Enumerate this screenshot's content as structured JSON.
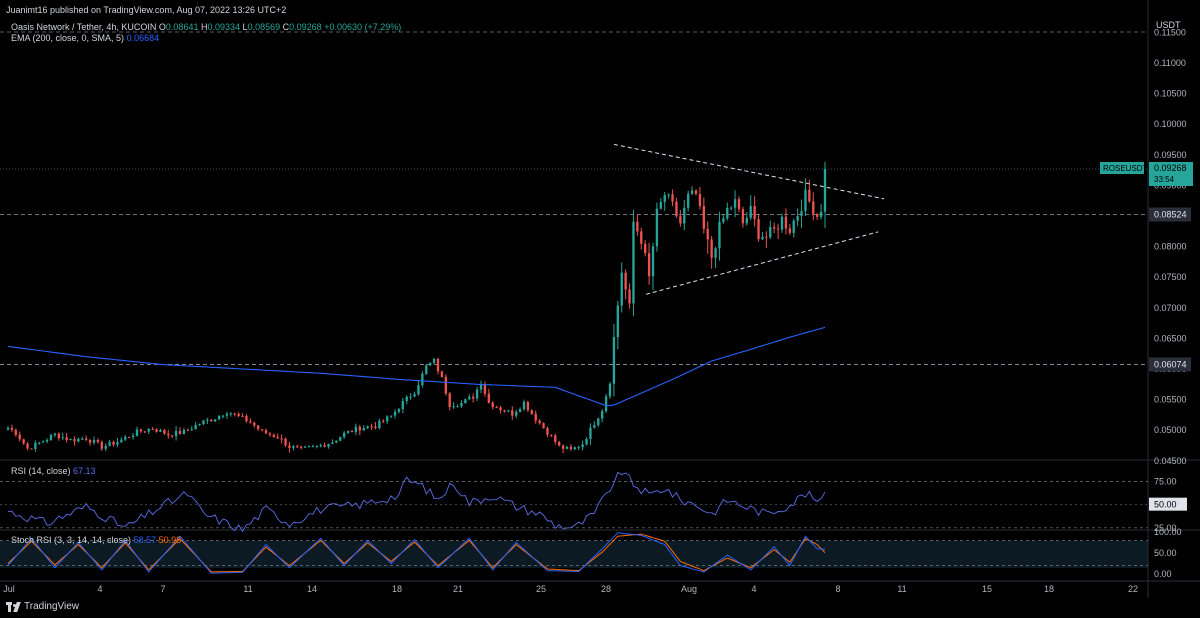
{
  "header": {
    "published": "Juanimt16 published on TradingView.com, Aug 07, 2022 13:26 UTC+2",
    "symbol": "Oasis Network / Tether, 4h, KUCOIN",
    "o_label": "O",
    "o_value": "0.08641",
    "h_label": "H",
    "h_value": "0.09334",
    "l_label": "L",
    "l_value": "0.08569",
    "c_label": "C",
    "c_value": "0.09268",
    "change": "+0.00630 (+7.29%)",
    "ema_label": "EMA (200, close, 0, SMA, 5)",
    "ema_value": "0.06684"
  },
  "price_axis": {
    "currency": "USDT",
    "ticks": [
      "0.11500",
      "0.11000",
      "0.10500",
      "0.10000",
      "0.09500",
      "0.09000",
      "0.08500",
      "0.08000",
      "0.07500",
      "0.07000",
      "0.06500",
      "0.06000",
      "0.05500",
      "0.05000",
      "0.04500"
    ],
    "levels": [
      {
        "value": "0.08524",
        "price": 0.08524
      },
      {
        "value": "0.06074",
        "price": 0.06074
      }
    ],
    "symbol_tag": "ROSEUSDT",
    "last_price": "0.09268",
    "countdown": "33:54"
  },
  "rsi": {
    "label": "RSI (14, close)",
    "value": "67.13",
    "ticks": [
      "75.00",
      "25.00"
    ],
    "current_tag": "50.00"
  },
  "stoch": {
    "label": "Stoch RSI (3, 3, 14, 14, close)",
    "k_value": "58.57",
    "d_value": "50.98",
    "ticks": [
      "100.00",
      "50.00",
      "0.00"
    ]
  },
  "time_axis": {
    "labels": [
      "Jul",
      "4",
      "7",
      "11",
      "14",
      "18",
      "21",
      "25",
      "28",
      "Aug",
      "4",
      "8",
      "11",
      "15",
      "18",
      "22"
    ]
  },
  "footer": {
    "brand": "TradingView"
  },
  "colors": {
    "up": "#26a69a",
    "down": "#ef5350",
    "ema": "#2962ff",
    "rsi": "#5b6ee8",
    "stoch_k": "#2962ff",
    "stoch_d": "#ff6d00"
  },
  "chart_data": {
    "type": "candlestick",
    "title": "Oasis Network / Tether, 4h, KUCOIN",
    "ylim": [
      0.043,
      0.1185
    ],
    "trendlines": [
      {
        "name": "upper",
        "from": [
          0.0,
          0.0967
        ],
        "to": [
          0.1,
          0.0878
        ]
      },
      {
        "name": "lower",
        "from": [
          0.0,
          0.0722
        ],
        "to": [
          0.1,
          0.0824
        ]
      }
    ],
    "anchors": [
      [
        0,
        0.0504
      ],
      [
        2,
        0.0496
      ],
      [
        5,
        0.047
      ],
      [
        8,
        0.0479
      ],
      [
        12,
        0.0493
      ],
      [
        16,
        0.0484
      ],
      [
        20,
        0.0487
      ],
      [
        24,
        0.0473
      ],
      [
        28,
        0.0481
      ],
      [
        33,
        0.0497
      ],
      [
        37,
        0.0503
      ],
      [
        41,
        0.0493
      ],
      [
        45,
        0.0497
      ],
      [
        49,
        0.0511
      ],
      [
        53,
        0.052
      ],
      [
        56,
        0.0531
      ],
      [
        59,
        0.0522
      ],
      [
        62,
        0.0513
      ],
      [
        65,
        0.0497
      ],
      [
        69,
        0.0489
      ],
      [
        72,
        0.0473
      ],
      [
        75,
        0.0468
      ],
      [
        79,
        0.0473
      ],
      [
        83,
        0.0481
      ],
      [
        86,
        0.0494
      ],
      [
        90,
        0.0504
      ],
      [
        94,
        0.0507
      ],
      [
        98,
        0.0523
      ],
      [
        101,
        0.0545
      ],
      [
        104,
        0.0563
      ],
      [
        107,
        0.0604
      ],
      [
        109,
        0.0613
      ],
      [
        111,
        0.0584
      ],
      [
        113,
        0.0542
      ],
      [
        116,
        0.0544
      ],
      [
        119,
        0.0555
      ],
      [
        121,
        0.0578
      ],
      [
        123,
        0.0545
      ],
      [
        126,
        0.0535
      ],
      [
        129,
        0.0527
      ],
      [
        132,
        0.0545
      ],
      [
        135,
        0.0519
      ],
      [
        138,
        0.0497
      ],
      [
        141,
        0.0473
      ],
      [
        144,
        0.0467
      ],
      [
        147,
        0.0478
      ],
      [
        150,
        0.0512
      ],
      [
        152,
        0.0534
      ],
      [
        154,
        0.058
      ],
      [
        155,
        0.065
      ],
      [
        157,
        0.076
      ],
      [
        159,
        0.0698
      ],
      [
        160,
        0.084
      ],
      [
        162,
        0.0813
      ],
      [
        164,
        0.0748
      ],
      [
        166,
        0.0853
      ],
      [
        168,
        0.0885
      ],
      [
        170,
        0.0865
      ],
      [
        172,
        0.0838
      ],
      [
        174,
        0.088
      ],
      [
        176,
        0.0885
      ],
      [
        178,
        0.0826
      ],
      [
        180,
        0.0783
      ],
      [
        182,
        0.083
      ],
      [
        184,
        0.086
      ],
      [
        186,
        0.0872
      ],
      [
        188,
        0.0838
      ],
      [
        190,
        0.0858
      ],
      [
        192,
        0.0822
      ],
      [
        194,
        0.0816
      ],
      [
        196,
        0.0826
      ],
      [
        198,
        0.0845
      ],
      [
        200,
        0.0829
      ],
      [
        202,
        0.0854
      ],
      [
        204,
        0.0883
      ],
      [
        206,
        0.0864
      ],
      [
        207,
        0.0851
      ],
      [
        208,
        0.0864
      ],
      [
        209,
        0.0927
      ]
    ],
    "ema": [
      [
        0,
        0.0637
      ],
      [
        20,
        0.062
      ],
      [
        40,
        0.0607
      ],
      [
        60,
        0.06
      ],
      [
        80,
        0.0593
      ],
      [
        100,
        0.0583
      ],
      [
        120,
        0.0575
      ],
      [
        140,
        0.057
      ],
      [
        153,
        0.054
      ],
      [
        155,
        0.0541
      ],
      [
        160,
        0.0555
      ],
      [
        170,
        0.0583
      ],
      [
        180,
        0.0613
      ],
      [
        190,
        0.0632
      ],
      [
        200,
        0.0652
      ],
      [
        209,
        0.0668
      ]
    ],
    "rsi_series": [
      [
        0,
        43
      ],
      [
        10,
        30
      ],
      [
        20,
        48
      ],
      [
        30,
        25
      ],
      [
        40,
        50
      ],
      [
        46,
        62
      ],
      [
        50,
        40
      ],
      [
        60,
        23
      ],
      [
        66,
        45
      ],
      [
        72,
        30
      ],
      [
        80,
        45
      ],
      [
        90,
        50
      ],
      [
        100,
        60
      ],
      [
        102,
        77
      ],
      [
        106,
        70
      ],
      [
        110,
        55
      ],
      [
        114,
        74
      ],
      [
        118,
        52
      ],
      [
        124,
        60
      ],
      [
        130,
        48
      ],
      [
        136,
        40
      ],
      [
        140,
        28
      ],
      [
        145,
        25
      ],
      [
        150,
        40
      ],
      [
        154,
        68
      ],
      [
        157,
        86
      ],
      [
        160,
        72
      ],
      [
        164,
        60
      ],
      [
        168,
        68
      ],
      [
        172,
        55
      ],
      [
        176,
        50
      ],
      [
        180,
        40
      ],
      [
        184,
        55
      ],
      [
        190,
        46
      ],
      [
        194,
        40
      ],
      [
        200,
        50
      ],
      [
        204,
        62
      ],
      [
        208,
        52
      ],
      [
        209,
        67
      ]
    ],
    "stoch_k": [
      [
        0,
        20
      ],
      [
        6,
        85
      ],
      [
        12,
        15
      ],
      [
        18,
        75
      ],
      [
        24,
        10
      ],
      [
        30,
        80
      ],
      [
        36,
        5
      ],
      [
        44,
        90
      ],
      [
        52,
        2
      ],
      [
        60,
        4
      ],
      [
        66,
        70
      ],
      [
        72,
        15
      ],
      [
        80,
        85
      ],
      [
        86,
        20
      ],
      [
        92,
        80
      ],
      [
        98,
        25
      ],
      [
        104,
        82
      ],
      [
        110,
        15
      ],
      [
        118,
        85
      ],
      [
        124,
        10
      ],
      [
        130,
        75
      ],
      [
        138,
        8
      ],
      [
        146,
        6
      ],
      [
        152,
        60
      ],
      [
        156,
        98
      ],
      [
        162,
        92
      ],
      [
        168,
        70
      ],
      [
        172,
        20
      ],
      [
        178,
        5
      ],
      [
        184,
        45
      ],
      [
        190,
        10
      ],
      [
        196,
        65
      ],
      [
        200,
        20
      ],
      [
        204,
        90
      ],
      [
        207,
        60
      ],
      [
        209,
        59
      ]
    ],
    "stoch_d": [
      [
        0,
        25
      ],
      [
        6,
        78
      ],
      [
        12,
        22
      ],
      [
        18,
        70
      ],
      [
        24,
        15
      ],
      [
        30,
        74
      ],
      [
        36,
        10
      ],
      [
        44,
        84
      ],
      [
        52,
        5
      ],
      [
        60,
        6
      ],
      [
        66,
        64
      ],
      [
        72,
        20
      ],
      [
        80,
        80
      ],
      [
        86,
        25
      ],
      [
        92,
        74
      ],
      [
        98,
        30
      ],
      [
        104,
        76
      ],
      [
        110,
        20
      ],
      [
        118,
        80
      ],
      [
        124,
        15
      ],
      [
        130,
        70
      ],
      [
        138,
        12
      ],
      [
        146,
        8
      ],
      [
        152,
        52
      ],
      [
        156,
        90
      ],
      [
        162,
        95
      ],
      [
        168,
        78
      ],
      [
        172,
        30
      ],
      [
        178,
        8
      ],
      [
        184,
        38
      ],
      [
        190,
        15
      ],
      [
        196,
        58
      ],
      [
        200,
        28
      ],
      [
        204,
        84
      ],
      [
        207,
        70
      ],
      [
        209,
        51
      ]
    ]
  }
}
